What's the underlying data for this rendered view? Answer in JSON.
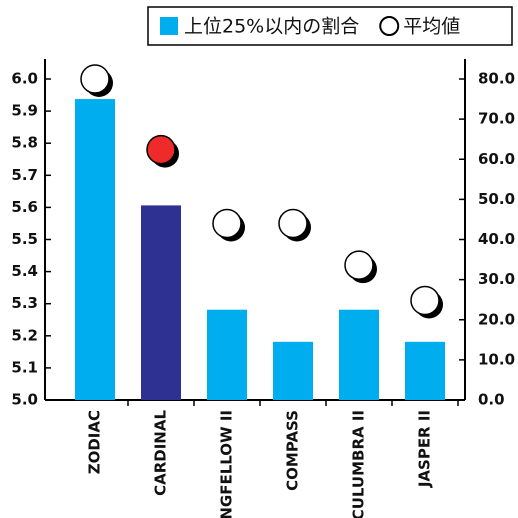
{
  "chart_data": {
    "type": "bar",
    "categories": [
      "ZODIAC",
      "CARDINAL",
      "LONGFELLOW II",
      "COMPASS",
      "CULUMBRA II",
      "JASPER II"
    ],
    "series": [
      {
        "name": "上位25%以内の割合",
        "type": "bar",
        "axis": "y2",
        "color": "#00aeef",
        "colors": [
          "#00aeef",
          "#2e3192",
          "#00aeef",
          "#00aeef",
          "#00aeef",
          "#00aeef"
        ],
        "values": [
          75,
          48.5,
          22.5,
          14.5,
          22.5,
          14.5
        ]
      },
      {
        "name": "平均値",
        "type": "scatter",
        "color": "#ffffff",
        "colors": [
          "#ffffff",
          "#ee2a2a",
          "#ffffff",
          "#ffffff",
          "#ffffff",
          "#ffffff"
        ],
        "values": [
          6.0,
          5.78,
          5.55,
          5.55,
          5.42,
          5.31
        ]
      }
    ],
    "ylim": [
      5.0,
      6.0
    ],
    "yticks": [
      {
        "value": 5.0,
        "label": "5.0"
      },
      {
        "value": 5.1,
        "label": "5.1"
      },
      {
        "value": 5.2,
        "label": "5.2"
      },
      {
        "value": 5.3,
        "label": "5.3"
      },
      {
        "value": 5.4,
        "label": "5.4"
      },
      {
        "value": 5.5,
        "label": "5.5"
      },
      {
        "value": 5.6,
        "label": "5.6"
      },
      {
        "value": 5.7,
        "label": "5.7"
      },
      {
        "value": 5.8,
        "label": "5.8"
      },
      {
        "value": 5.9,
        "label": "5.9"
      },
      {
        "value": 6.0,
        "label": "6.0"
      }
    ],
    "y2lim": [
      0,
      80
    ],
    "y2ticks": [
      {
        "value": 0,
        "label": "0.0"
      },
      {
        "value": 10,
        "label": "10.0"
      },
      {
        "value": 20,
        "label": "20.0"
      },
      {
        "value": 30,
        "label": "30.0"
      },
      {
        "value": 40,
        "label": "40.0"
      },
      {
        "value": 50,
        "label": "50.0"
      },
      {
        "value": 60,
        "label": "60.0"
      },
      {
        "value": 70,
        "label": "70.0"
      },
      {
        "value": 80,
        "label": "80.0"
      }
    ],
    "legend": "top-right"
  }
}
